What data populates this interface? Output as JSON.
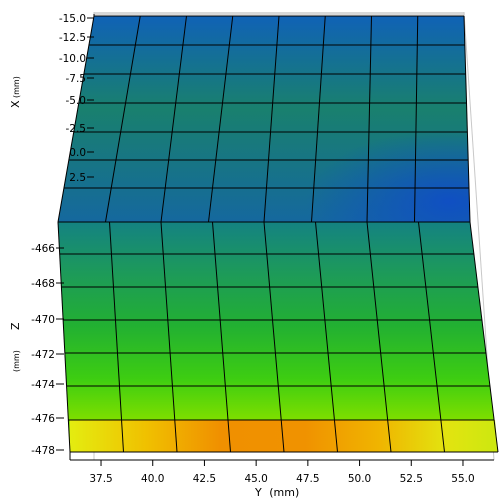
{
  "chart_data": {
    "type": "heatmap",
    "title": "",
    "y_axis": {
      "label": "Y",
      "unit": "(mm)",
      "ticks": [
        "37.5",
        "40.0",
        "42.5",
        "45.0",
        "47.5",
        "50.0",
        "52.5",
        "55.0"
      ],
      "range": [
        36,
        56.5
      ]
    },
    "x_axis": {
      "label": "X",
      "unit": "(mm)",
      "ticks": [
        "-15.0",
        "-12.5",
        "-10.0",
        "-7.5",
        "-5.0",
        "-2.5",
        "0.0",
        "2.5"
      ],
      "range": [
        -15,
        5
      ]
    },
    "z_axis": {
      "label": "Z",
      "unit": "(mm)",
      "ticks": [
        "-466",
        "-468",
        "-470",
        "-472",
        "-474",
        "-476",
        "-478"
      ],
      "range": [
        -478,
        -465
      ]
    },
    "grid": true,
    "colormap": [
      "#0f48c8",
      "#16859a",
      "#1a9a6a",
      "#22b038",
      "#3ccc10",
      "#8ce000",
      "#ecec10",
      "#f0a000"
    ],
    "bottom_surface_colors": [
      "#e4ec10",
      "#f0c000",
      "#f09000",
      "#f09000",
      "#f0a800",
      "#e8d800",
      "#dce810",
      "#cce810"
    ]
  }
}
